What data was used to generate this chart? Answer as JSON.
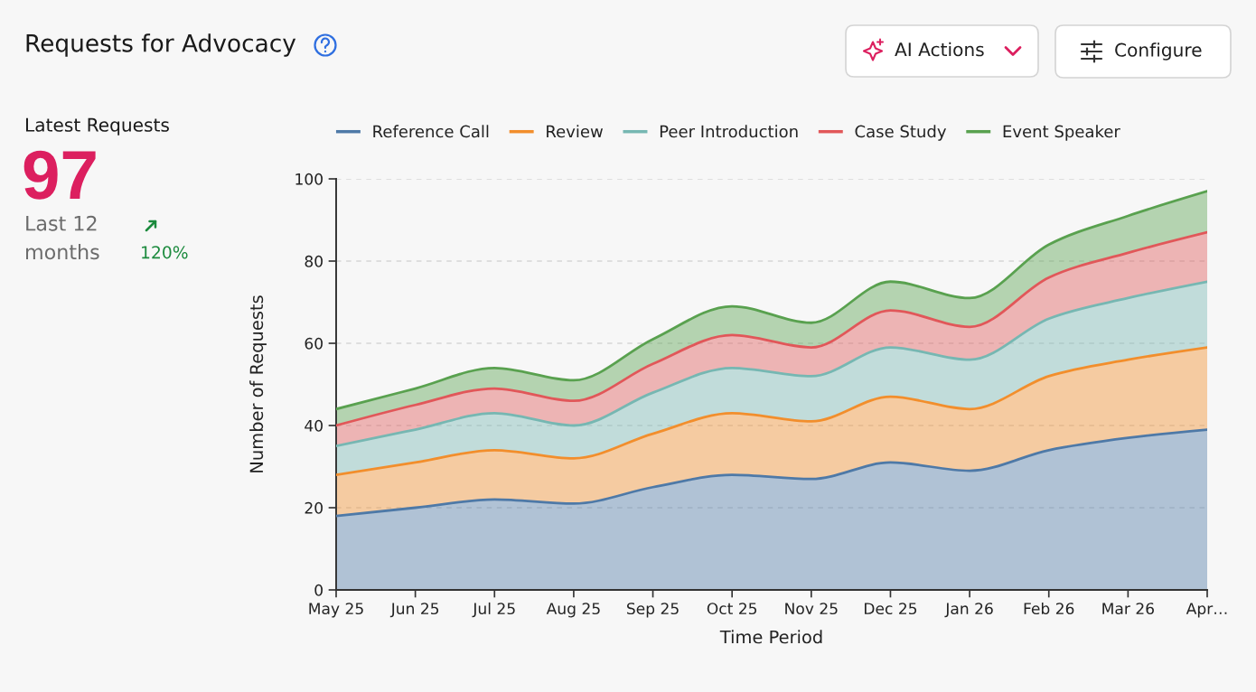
{
  "chart_data": [
    {
      "type": "other",
      "title": "Latest Requests",
      "annotations": [
        "97",
        "Last 12\nmonths",
        "120%"
      ]
    },
    {
      "type": "area",
      "title": "Requests for Advocacy",
      "xlabel": "Time Period",
      "ylabel": "Number of Requests",
      "categories": [
        "May 25",
        "Jun 25",
        "Jul 25",
        "Aug 25",
        "Sep 25",
        "Oct 25",
        "Nov 25",
        "Dec 25",
        "Jan 26",
        "Feb 26",
        "Mar 26",
        "Apr…"
      ],
      "stacked": true,
      "series": [
        {
          "name": "Reference Call",
          "color": "#4e79a7",
          "values": [
            18,
            20,
            22,
            21,
            25,
            28,
            27,
            31,
            29,
            34,
            37,
            39
          ]
        },
        {
          "name": "Review",
          "color": "#f28e2c",
          "values": [
            10,
            11,
            12,
            11,
            13,
            15,
            14,
            16,
            15,
            18,
            19,
            20
          ]
        },
        {
          "name": "Peer Introduction",
          "color": "#76b7b2",
          "values": [
            7,
            8,
            9,
            8,
            10,
            11,
            11,
            12,
            12,
            14,
            15,
            16
          ]
        },
        {
          "name": "Case Study",
          "color": "#e15759",
          "values": [
            5,
            6,
            6,
            6,
            7,
            8,
            7,
            9,
            8,
            10,
            11,
            12
          ]
        },
        {
          "name": "Event Speaker",
          "color": "#59a14f",
          "values": [
            4,
            4,
            5,
            5,
            6,
            7,
            6,
            7,
            7,
            8,
            9,
            10
          ]
        }
      ],
      "ylim": [
        0,
        100
      ],
      "yticks": [
        0,
        20,
        40,
        60,
        80,
        100
      ],
      "grid": "y",
      "legend": "top",
      "annotations": [
        "AI Actions",
        "Configure"
      ]
    }
  ]
}
